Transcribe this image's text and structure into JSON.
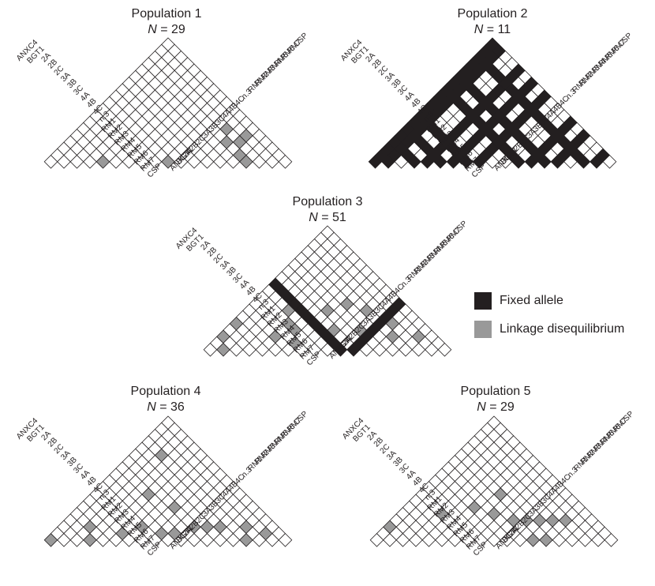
{
  "colors": {
    "fixed": "#231f20",
    "ld": "#999999",
    "grid": "#231f20",
    "empty": "#ffffff"
  },
  "loci": [
    "ANXC4",
    "BGT1",
    "2A",
    "2B",
    "2C",
    "3A",
    "3B",
    "3C",
    "4A",
    "4B",
    "4C",
    "n.3",
    "RM1",
    "RM2",
    "RM3",
    "RM4",
    "RM5",
    "RM6",
    "RM7",
    "CSP"
  ],
  "legend": {
    "fixed_label": "Fixed allele",
    "ld_label": "Linkage disequilibrium"
  },
  "populations": [
    {
      "title": "Population 1",
      "n_prefix": "N",
      "n_value": "= 29",
      "ld": [
        [
          4,
          5
        ],
        [
          9,
          10
        ],
        [
          14,
          16
        ],
        [
          15,
          16
        ],
        [
          13,
          17
        ],
        [
          13,
          18
        ],
        [
          12,
          16
        ],
        [
          11,
          17
        ]
      ],
      "fixed_loci": []
    },
    {
      "title": "Population 2",
      "n_prefix": "N",
      "n_value": "= 11",
      "ld": [
        [
          0,
          6
        ],
        [
          1,
          5
        ]
      ],
      "fixed_loci": [
        0,
        1,
        4,
        6,
        8,
        12,
        14,
        17
      ]
    },
    {
      "title": "Population 3",
      "n_prefix": "N",
      "n_value": "= 51",
      "ld": [
        [
          0,
          3
        ],
        [
          1,
          2
        ],
        [
          0,
          5
        ],
        [
          4,
          7
        ],
        [
          6,
          8
        ],
        [
          5,
          9
        ],
        [
          2,
          11
        ],
        [
          3,
          10
        ],
        [
          4,
          9
        ],
        [
          8,
          12
        ],
        [
          10,
          14
        ],
        [
          7,
          15
        ],
        [
          12,
          17
        ],
        [
          13,
          16
        ],
        [
          15,
          18
        ],
        [
          6,
          13
        ],
        [
          9,
          16
        ],
        [
          11,
          18
        ]
      ],
      "fixed_loci": [
        11
      ]
    },
    {
      "title": "Population 4",
      "n_prefix": "N",
      "n_value": "= 36",
      "ld": [
        [
          0,
          1
        ],
        [
          2,
          5
        ],
        [
          3,
          4
        ],
        [
          5,
          7
        ],
        [
          6,
          9
        ],
        [
          8,
          10
        ],
        [
          9,
          11
        ],
        [
          7,
          13
        ],
        [
          10,
          13
        ],
        [
          11,
          14
        ],
        [
          12,
          15
        ],
        [
          14,
          17
        ],
        [
          15,
          16
        ],
        [
          4,
          12
        ],
        [
          2,
          16
        ],
        [
          16,
          18
        ]
      ],
      "fixed_loci": []
    },
    {
      "title": "Population 5",
      "n_prefix": "N",
      "n_value": "= 29",
      "ld": [
        [
          3,
          8
        ],
        [
          0,
          3
        ],
        [
          5,
          11
        ],
        [
          7,
          12
        ],
        [
          9,
          13
        ],
        [
          10,
          14
        ],
        [
          12,
          16
        ],
        [
          13,
          17
        ],
        [
          11,
          15
        ],
        [
          6,
          14
        ],
        [
          13,
          14
        ],
        [
          12,
          13
        ]
      ],
      "fixed_loci": []
    }
  ]
}
